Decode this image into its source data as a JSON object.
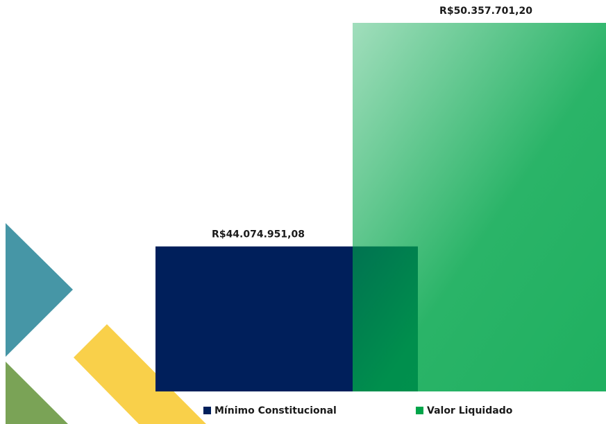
{
  "chart_data": {
    "type": "bar",
    "categories": [
      null
    ],
    "series": [
      {
        "name": "Mínimo Constitucional",
        "color": "#001f5b",
        "values": [
          44074951.08
        ],
        "value_labels": [
          "R$44.074.951,08"
        ]
      },
      {
        "name": "Valor Liquidado",
        "color": "#00a54a",
        "values": [
          50357701.2
        ],
        "value_labels": [
          "R$50.357.701,20"
        ]
      }
    ],
    "ylim": [
      40000000,
      51000000
    ]
  }
}
